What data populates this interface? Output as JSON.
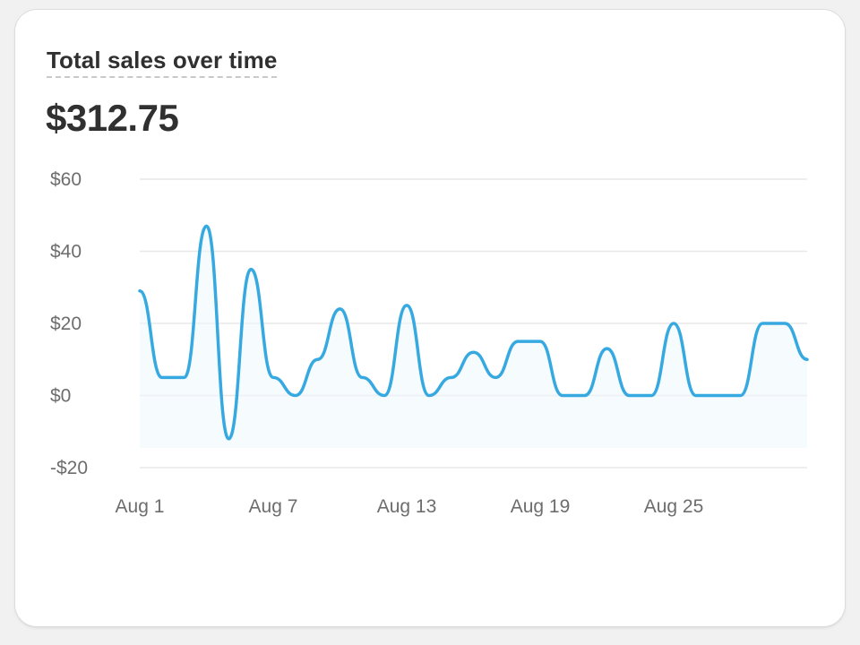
{
  "card": {
    "title": "Total sales over time",
    "total": "$312.75"
  },
  "chart_data": {
    "type": "line",
    "title": "",
    "xlabel": "",
    "ylabel": "",
    "x": [
      "Aug 1",
      "Aug 2",
      "Aug 3",
      "Aug 4",
      "Aug 5",
      "Aug 6",
      "Aug 7",
      "Aug 8",
      "Aug 9",
      "Aug 10",
      "Aug 11",
      "Aug 12",
      "Aug 13",
      "Aug 14",
      "Aug 15",
      "Aug 16",
      "Aug 17",
      "Aug 18",
      "Aug 19",
      "Aug 20",
      "Aug 21",
      "Aug 22",
      "Aug 23",
      "Aug 24",
      "Aug 25",
      "Aug 26",
      "Aug 27",
      "Aug 28",
      "Aug 29",
      "Aug 30",
      "Aug 31"
    ],
    "series": [
      {
        "values": [
          29,
          5,
          5,
          47,
          -12,
          35,
          5,
          0,
          10,
          24,
          5,
          0,
          25,
          0,
          5,
          12,
          5,
          15,
          15,
          0,
          0,
          13,
          0,
          0,
          20,
          0,
          0,
          0,
          20,
          20,
          10
        ]
      }
    ],
    "x_tick_labels": [
      "Aug 1",
      "Aug 7",
      "Aug 13",
      "Aug 19",
      "Aug 25"
    ],
    "x_tick_indices": [
      0,
      6,
      12,
      18,
      24
    ],
    "y_tick_labels": [
      "$60",
      "$40",
      "$20",
      "$0",
      "-$20"
    ],
    "y_tick_values": [
      60,
      40,
      20,
      0,
      -20
    ],
    "ylim": [
      -20,
      60
    ],
    "grid": true,
    "line_color": "#36a9e1",
    "fill_color": "#eef7fd"
  }
}
